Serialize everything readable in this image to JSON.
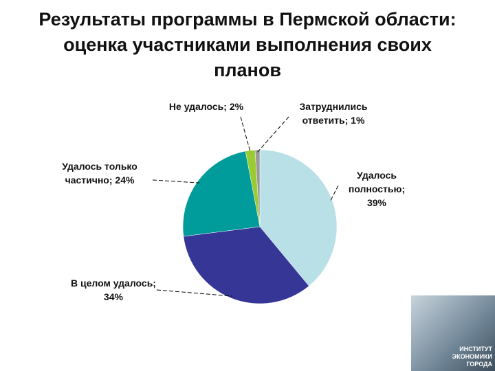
{
  "chart_data": {
    "type": "pie",
    "title": "Результаты программы в Пермской области: оценка участниками выполнения своих планов",
    "values": [
      39,
      34,
      24,
      2,
      1
    ],
    "value_labels": [
      "Удалось полностью; 39%",
      "В целом удалось; 34%",
      "Удалось только частично; 24%",
      "Не удалось; 2%",
      "Затруднились ответить; 1%"
    ],
    "colors": [
      "#b9e0e6",
      "#363696",
      "#009b9b",
      "#99cc33",
      "#9a9a9a"
    ]
  },
  "logo": "ИНСТИТУТ ЭКОНОМИКИ ГОРОДА"
}
